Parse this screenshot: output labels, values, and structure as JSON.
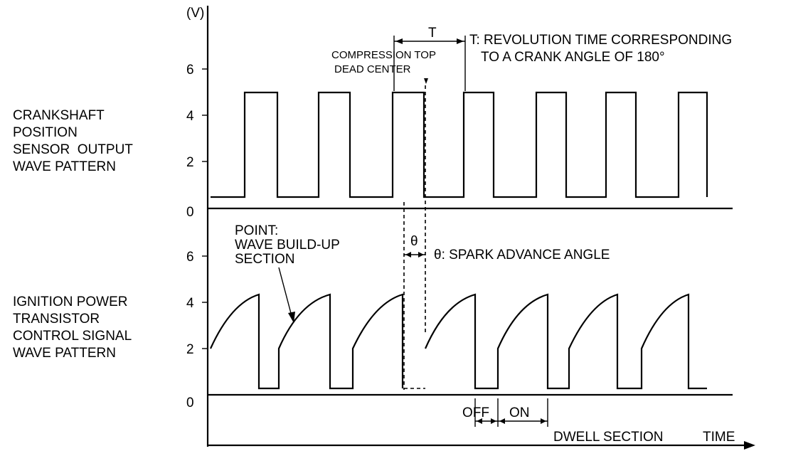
{
  "unit_label": "(V)",
  "top_panel": {
    "label_lines": [
      "CRANKSHAFT",
      "POSITION",
      "SENSOR  OUTPUT",
      "WAVE PATTERN"
    ],
    "ticks": [
      "6",
      "4",
      "2",
      "0"
    ],
    "pulse_high_v": 5.0,
    "pulse_low_v": 0.5
  },
  "bottom_panel": {
    "label_lines": [
      "IGNITION POWER",
      "TRANSISTOR",
      "CONTROL SIGNAL",
      "WAVE PATTERN"
    ],
    "ticks": [
      "6",
      "4",
      "2",
      "0"
    ],
    "ramp_start_v": 2.0,
    "ramp_peak_v": 4.3,
    "off_level_v": 0.3
  },
  "annotations": {
    "t_symbol": "T",
    "t_definition_line1": "T: REVOLUTION TIME CORRESPONDING",
    "t_definition_line2": "TO A CRANK ANGLE OF 180°",
    "compression_line1": "COMPRESSION TOP",
    "compression_line2": "DEAD CENTER",
    "point_line1": "POINT:",
    "point_line2": "WAVE BUILD-UP",
    "point_line3": "SECTION",
    "theta_symbol": "θ",
    "theta_definition": "θ: SPARK ADVANCE ANGLE",
    "off_label": "OFF",
    "on_label": "ON",
    "dwell_label": "DWELL SECTION",
    "time_label": "TIME"
  },
  "colors": {
    "ink": "#000000",
    "background": "#ffffff"
  }
}
